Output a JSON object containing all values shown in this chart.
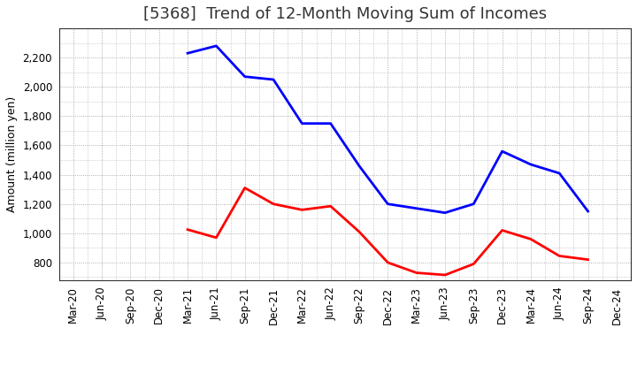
{
  "title": "[5368]  Trend of 12-Month Moving Sum of Incomes",
  "ylabel": "Amount (million yen)",
  "x_labels": [
    "Mar-20",
    "Jun-20",
    "Sep-20",
    "Dec-20",
    "Mar-21",
    "Jun-21",
    "Sep-21",
    "Dec-21",
    "Mar-22",
    "Jun-22",
    "Sep-22",
    "Dec-22",
    "Mar-23",
    "Jun-23",
    "Sep-23",
    "Dec-23",
    "Mar-24",
    "Jun-24",
    "Sep-24",
    "Dec-24"
  ],
  "ordinary_income": [
    null,
    null,
    null,
    null,
    2230,
    2280,
    2070,
    2050,
    1750,
    1750,
    1460,
    1200,
    1170,
    1140,
    1200,
    1560,
    1470,
    1410,
    1150,
    null
  ],
  "net_income": [
    null,
    null,
    null,
    null,
    1025,
    970,
    1310,
    1200,
    1160,
    1185,
    1010,
    800,
    730,
    715,
    790,
    1020,
    960,
    845,
    820,
    null
  ],
  "ordinary_income_color": "#0000ff",
  "net_income_color": "#ff0000",
  "ylim_min": 680,
  "ylim_max": 2400,
  "yticks": [
    800,
    1000,
    1200,
    1400,
    1600,
    1800,
    2000,
    2200
  ],
  "background_color": "#ffffff",
  "plot_bg_color": "#ffffff",
  "grid_color": "#999999",
  "title_fontsize": 13,
  "axis_label_fontsize": 9,
  "tick_fontsize": 8.5,
  "line_width": 2.0
}
